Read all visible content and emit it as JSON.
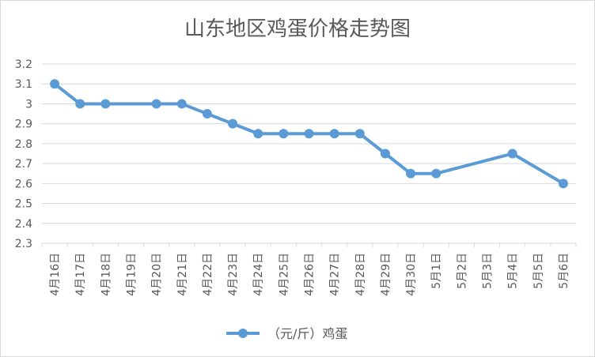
{
  "chart_data": {
    "type": "line",
    "title": "山东地区鸡蛋价格走势图",
    "xlabel": "",
    "ylabel": "",
    "categories": [
      "4月16日",
      "4月17日",
      "4月18日",
      "4月19日",
      "4月20日",
      "4月21日",
      "4月22日",
      "4月23日",
      "4月24日",
      "4月25日",
      "4月26日",
      "4月27日",
      "4月28日",
      "4月29日",
      "4月30日",
      "5月1日",
      "5月2日",
      "5月3日",
      "5月4日",
      "5月5日",
      "5月6日"
    ],
    "series": [
      {
        "name": "（元/斤）鸡蛋",
        "values": [
          3.1,
          3.0,
          3.0,
          null,
          3.0,
          3.0,
          2.95,
          2.9,
          2.85,
          2.85,
          2.85,
          2.85,
          2.85,
          2.75,
          2.65,
          2.65,
          null,
          null,
          2.75,
          null,
          2.6
        ]
      }
    ],
    "ylim": [
      2.3,
      3.2
    ],
    "yticks": [
      "2.3",
      "2.4",
      "2.5",
      "2.6",
      "2.7",
      "2.8",
      "2.9",
      "3",
      "3.1",
      "3.2"
    ],
    "grid": true,
    "legend": "bottom",
    "colors": {
      "series": "#5b9bd5",
      "grid": "#d9d9d9",
      "text": "#595959"
    }
  }
}
